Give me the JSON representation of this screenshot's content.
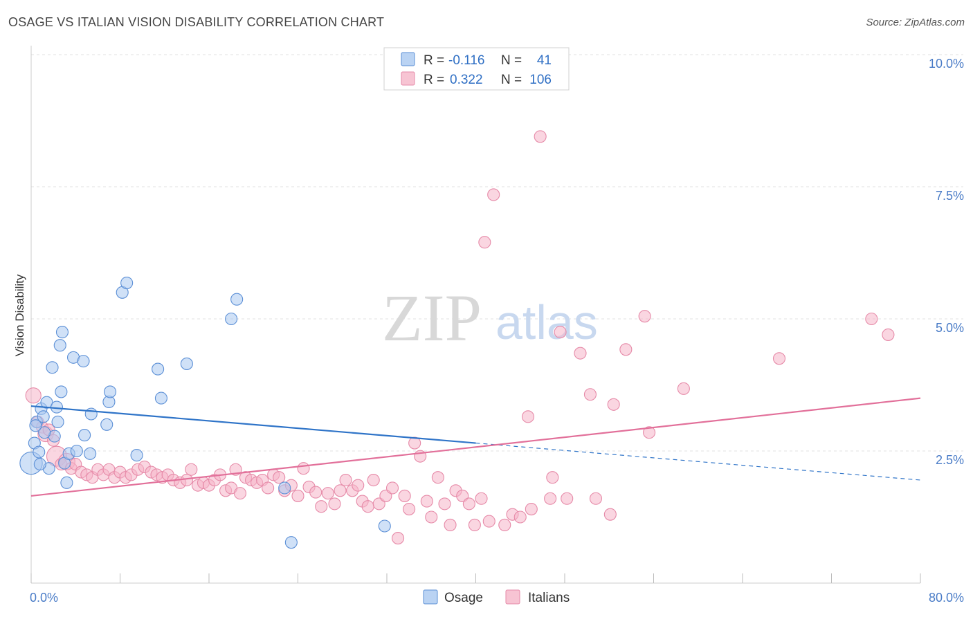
{
  "header": {
    "title": "OSAGE VS ITALIAN VISION DISABILITY CORRELATION CHART",
    "source": "Source: ZipAtlas.com"
  },
  "watermark": {
    "part1": "ZIP",
    "part2": "atlas"
  },
  "colors": {
    "osage_fill": "#a9c8f0",
    "osage_stroke": "#5b8fd6",
    "osage_line": "#2f74c8",
    "italians_fill": "#f5b5c8",
    "italians_stroke": "#e68aa8",
    "italians_line": "#e2709a",
    "tick_text": "#4a7cc7"
  },
  "legend_top": {
    "rows": [
      {
        "r_label": "R =",
        "r_value": "-0.116",
        "n_label": "N =",
        "n_value": "41"
      },
      {
        "r_label": "R =",
        "r_value": "0.322",
        "n_label": "N =",
        "n_value": "106"
      }
    ]
  },
  "legend_bottom": {
    "items": [
      {
        "label": "Osage"
      },
      {
        "label": "Italians"
      }
    ]
  },
  "chart_data": {
    "type": "scatter",
    "title": "OSAGE VS ITALIAN VISION DISABILITY CORRELATION CHART",
    "ylabel": "Vision Disability",
    "xlabel": "",
    "xlim": [
      0,
      80
    ],
    "ylim": [
      0,
      10.0
    ],
    "x_tick_labels": [
      "0.0%",
      "80.0%"
    ],
    "y_ticks": [
      2.5,
      5.0,
      7.5,
      10.0
    ],
    "y_tick_labels": [
      "2.5%",
      "5.0%",
      "7.5%",
      "10.0%"
    ],
    "grid": true,
    "legend_placement": "top-center",
    "series": [
      {
        "name": "Osage",
        "r": -0.116,
        "n": 41,
        "trend": {
          "x0": 0,
          "y0": 3.35,
          "x1": 40,
          "y1": 2.65,
          "dash_to_x": 80,
          "dash_to_y": 1.95
        },
        "points": [
          [
            0.0,
            2.27,
            1.9
          ],
          [
            0.3,
            2.65,
            1
          ],
          [
            0.5,
            3.05,
            1
          ],
          [
            0.7,
            2.48,
            1
          ],
          [
            0.9,
            3.3,
            1
          ],
          [
            1.1,
            3.15,
            1
          ],
          [
            1.4,
            3.42,
            1
          ],
          [
            1.6,
            2.17,
            1
          ],
          [
            1.9,
            4.08,
            1
          ],
          [
            2.1,
            2.78,
            1
          ],
          [
            2.3,
            3.33,
            1
          ],
          [
            2.4,
            3.05,
            1
          ],
          [
            2.6,
            4.5,
            1
          ],
          [
            2.7,
            3.62,
            1
          ],
          [
            2.8,
            4.75,
            1
          ],
          [
            3.0,
            2.27,
            1
          ],
          [
            3.2,
            1.9,
            1
          ],
          [
            3.4,
            2.45,
            1
          ],
          [
            3.8,
            4.27,
            1
          ],
          [
            4.1,
            2.5,
            1
          ],
          [
            4.7,
            4.2,
            1
          ],
          [
            4.8,
            2.8,
            1
          ],
          [
            5.3,
            2.45,
            1
          ],
          [
            5.4,
            3.2,
            1
          ],
          [
            6.8,
            3.0,
            1
          ],
          [
            7.0,
            3.43,
            1
          ],
          [
            7.1,
            3.62,
            1
          ],
          [
            8.2,
            5.5,
            1
          ],
          [
            8.6,
            5.68,
            1
          ],
          [
            9.5,
            2.42,
            1
          ],
          [
            11.4,
            4.05,
            1
          ],
          [
            11.7,
            3.5,
            1
          ],
          [
            14.0,
            4.15,
            1
          ],
          [
            18.0,
            5.0,
            1
          ],
          [
            18.5,
            5.37,
            1
          ],
          [
            22.8,
            1.8,
            1
          ],
          [
            23.4,
            0.77,
            1
          ],
          [
            31.8,
            1.08,
            1
          ],
          [
            0.8,
            2.25,
            1
          ],
          [
            1.2,
            2.85,
            1
          ],
          [
            0.4,
            2.98,
            1
          ]
        ]
      },
      {
        "name": "Italians",
        "r": 0.322,
        "n": 106,
        "trend": {
          "x0": 0,
          "y0": 1.65,
          "x1": 80,
          "y1": 3.5
        },
        "points": [
          [
            0.2,
            3.55,
            1.3
          ],
          [
            0.6,
            3.05,
            1
          ],
          [
            1.0,
            2.95,
            1
          ],
          [
            1.3,
            2.82,
            1.3
          ],
          [
            1.6,
            2.9,
            1
          ],
          [
            2.0,
            2.7,
            1
          ],
          [
            2.3,
            2.4,
            1.7
          ],
          [
            2.7,
            2.25,
            1
          ],
          [
            3.2,
            2.3,
            1.4
          ],
          [
            3.6,
            2.17,
            1
          ],
          [
            4.0,
            2.25,
            1
          ],
          [
            4.5,
            2.1,
            1
          ],
          [
            5.0,
            2.05,
            1
          ],
          [
            5.5,
            2.0,
            1
          ],
          [
            6.0,
            2.15,
            1
          ],
          [
            6.5,
            2.05,
            1
          ],
          [
            7.0,
            2.15,
            1
          ],
          [
            7.5,
            2.0,
            1
          ],
          [
            8.0,
            2.1,
            1
          ],
          [
            8.5,
            2.0,
            1
          ],
          [
            9.0,
            2.05,
            1
          ],
          [
            9.6,
            2.15,
            1
          ],
          [
            10.2,
            2.2,
            1
          ],
          [
            10.8,
            2.1,
            1
          ],
          [
            11.3,
            2.05,
            1
          ],
          [
            11.8,
            2.0,
            1
          ],
          [
            12.3,
            2.05,
            1
          ],
          [
            12.8,
            1.95,
            1
          ],
          [
            13.4,
            1.9,
            1
          ],
          [
            14.0,
            1.95,
            1
          ],
          [
            14.4,
            2.15,
            1
          ],
          [
            15.0,
            1.85,
            1
          ],
          [
            15.5,
            1.9,
            1
          ],
          [
            16.0,
            1.85,
            1
          ],
          [
            16.5,
            1.95,
            1
          ],
          [
            17.0,
            2.05,
            1
          ],
          [
            17.5,
            1.75,
            1
          ],
          [
            18.0,
            1.8,
            1
          ],
          [
            18.4,
            2.15,
            1
          ],
          [
            18.8,
            1.7,
            1
          ],
          [
            19.3,
            2.0,
            1
          ],
          [
            19.8,
            1.95,
            1
          ],
          [
            20.3,
            1.9,
            1
          ],
          [
            20.8,
            1.95,
            1
          ],
          [
            21.3,
            1.8,
            1
          ],
          [
            21.8,
            2.05,
            1
          ],
          [
            22.3,
            2.0,
            1
          ],
          [
            22.8,
            1.75,
            1
          ],
          [
            23.4,
            1.85,
            1
          ],
          [
            24.0,
            1.65,
            1
          ],
          [
            24.5,
            2.17,
            1
          ],
          [
            25.0,
            1.82,
            1
          ],
          [
            25.6,
            1.72,
            1
          ],
          [
            26.1,
            1.45,
            1
          ],
          [
            26.7,
            1.7,
            1
          ],
          [
            27.3,
            1.5,
            1
          ],
          [
            27.8,
            1.75,
            1
          ],
          [
            28.3,
            1.95,
            1
          ],
          [
            28.9,
            1.75,
            1
          ],
          [
            29.4,
            1.85,
            1
          ],
          [
            29.8,
            1.55,
            1
          ],
          [
            30.3,
            1.45,
            1
          ],
          [
            30.8,
            1.95,
            1
          ],
          [
            31.3,
            1.5,
            1
          ],
          [
            31.9,
            1.65,
            1
          ],
          [
            32.5,
            1.8,
            1
          ],
          [
            33.0,
            0.85,
            1
          ],
          [
            33.6,
            1.65,
            1
          ],
          [
            34.0,
            1.4,
            1
          ],
          [
            34.5,
            2.65,
            1
          ],
          [
            35.0,
            2.4,
            1
          ],
          [
            35.6,
            1.55,
            1
          ],
          [
            36.0,
            1.25,
            1
          ],
          [
            36.6,
            2.0,
            1
          ],
          [
            37.2,
            1.5,
            1
          ],
          [
            37.7,
            1.1,
            1
          ],
          [
            38.2,
            1.75,
            1
          ],
          [
            38.8,
            1.65,
            1
          ],
          [
            39.4,
            1.5,
            1
          ],
          [
            39.9,
            1.1,
            1
          ],
          [
            40.5,
            1.6,
            1
          ],
          [
            40.8,
            6.45,
            1
          ],
          [
            41.6,
            7.35,
            1
          ],
          [
            41.2,
            1.17,
            1
          ],
          [
            42.6,
            1.1,
            1
          ],
          [
            43.3,
            1.3,
            1
          ],
          [
            44.0,
            1.25,
            1
          ],
          [
            44.7,
            3.15,
            1
          ],
          [
            45.0,
            1.4,
            1
          ],
          [
            45.8,
            8.45,
            1
          ],
          [
            46.7,
            1.6,
            1
          ],
          [
            46.9,
            2.0,
            1
          ],
          [
            47.6,
            4.75,
            1
          ],
          [
            48.2,
            1.6,
            1
          ],
          [
            49.4,
            4.35,
            1
          ],
          [
            50.3,
            3.57,
            1
          ],
          [
            50.8,
            1.6,
            1
          ],
          [
            52.1,
            1.3,
            1
          ],
          [
            52.4,
            3.38,
            1
          ],
          [
            53.5,
            4.42,
            1
          ],
          [
            55.6,
            2.85,
            1
          ],
          [
            55.2,
            5.05,
            1
          ],
          [
            58.7,
            3.68,
            1
          ],
          [
            67.3,
            4.25,
            1
          ],
          [
            75.6,
            5.0,
            1
          ],
          [
            77.1,
            4.7,
            1
          ]
        ]
      }
    ]
  }
}
